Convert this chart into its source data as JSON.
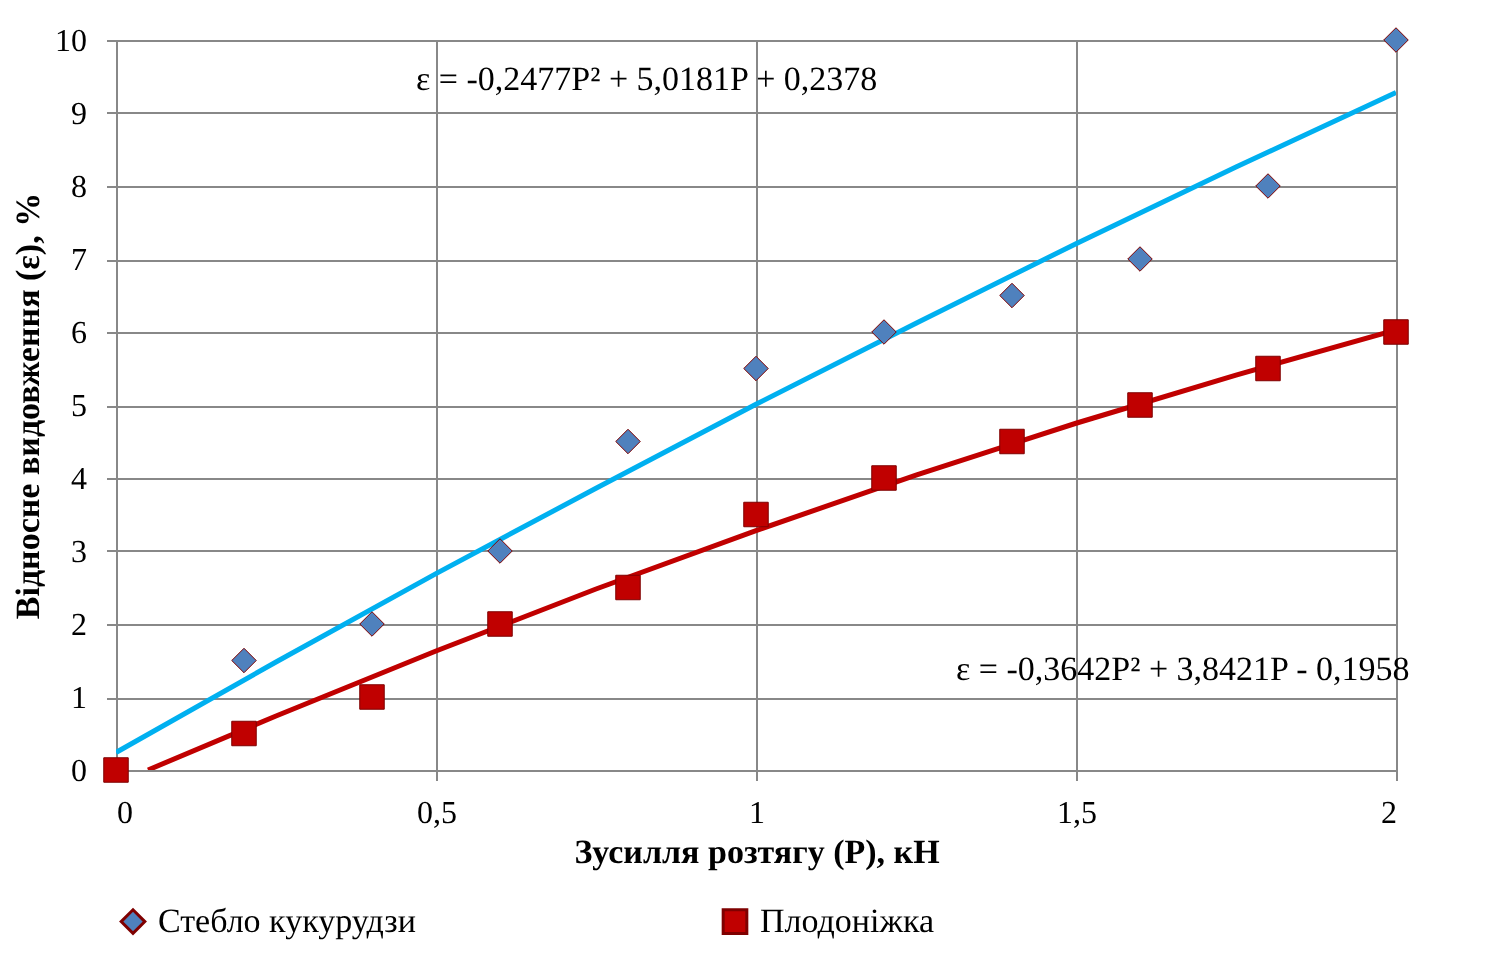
{
  "chart_data": {
    "type": "scatter",
    "xlabel": "Зусилля розтягу (P), кН",
    "ylabel": "Відносне видовження (ε), %",
    "xlim": [
      0,
      2
    ],
    "xticks": [
      0,
      {
        "value": 0.5,
        "label": "0,5"
      },
      1,
      {
        "value": 1.5,
        "label": "1,5"
      },
      2
    ],
    "ylim": [
      0,
      10
    ],
    "yticks": [
      0,
      1,
      2,
      3,
      4,
      5,
      6,
      7,
      8,
      9,
      10
    ],
    "grid": true,
    "legend": "bottom",
    "series": [
      {
        "name": "Стебло кукурудзи",
        "color": "#4f81bd",
        "marker": "diamond",
        "x": [
          0.2,
          0.4,
          0.6,
          0.8,
          1,
          1.2,
          1.4,
          1.6,
          1.8,
          2
        ],
        "values": [
          1.5,
          2,
          3,
          4.5,
          5.5,
          6,
          6.5,
          7,
          8,
          10
        ]
      },
      {
        "name": "Плодоніжка",
        "color": "#c00000",
        "marker": "square",
        "x": [
          0,
          0.2,
          0.4,
          0.6,
          0.8,
          1,
          1.2,
          1.4,
          1.6,
          1.8,
          2
        ],
        "values": [
          0,
          0.5,
          1,
          2,
          2.5,
          3.5,
          4,
          4.5,
          5,
          5.5,
          6
        ]
      },
      {
        "type": "line",
        "color": "#00b0f0",
        "marker": "none",
        "x": [
          0,
          0.25,
          0.5,
          0.75,
          1,
          1.25,
          1.5,
          1.75,
          2
        ],
        "values": [
          0.24,
          1.48,
          2.69,
          3.86,
          5.01,
          6.12,
          7.21,
          8.26,
          9.28
        ]
      },
      {
        "type": "line",
        "color": "#c00000",
        "marker": "none",
        "x": [
          0.05,
          0.25,
          0.5,
          0.75,
          1,
          1.25,
          1.5,
          1.75,
          2
        ],
        "values": [
          0,
          0.74,
          1.63,
          2.48,
          3.28,
          4.04,
          4.75,
          5.41,
          6.03
        ]
      }
    ],
    "annotations": [
      "ε = -0,2477P² + 5,0181P  + 0,2378",
      "ε = -0,3642P² + 3,8421P  - 0,1958"
    ]
  }
}
